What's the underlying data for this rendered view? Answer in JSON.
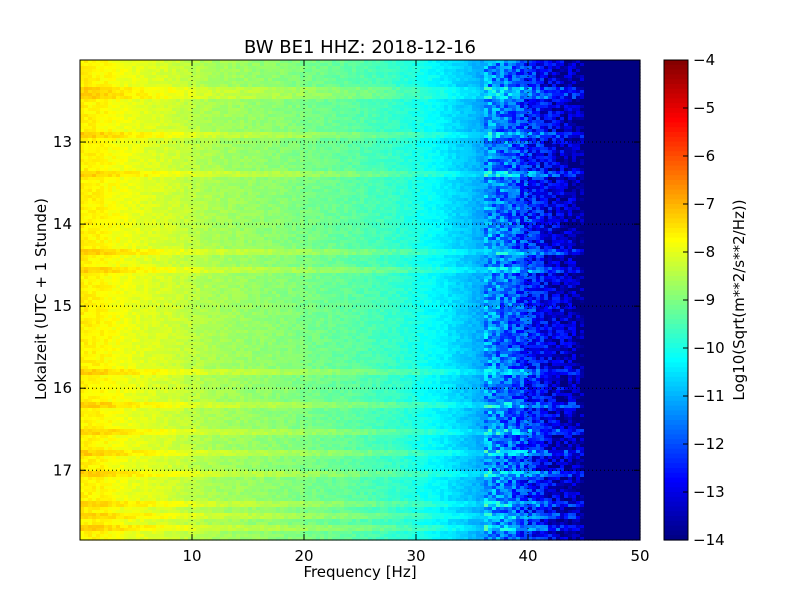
{
  "chart_data": {
    "type": "heatmap",
    "title": "BW BE1 HHZ: 2018-12-16",
    "xlabel": "Frequency [Hz]",
    "ylabel": "Lokalzeit (UTC + 1 Stunde)",
    "colorbar_label": "Log10(Sqrt(m**2/s**2/Hz))",
    "colormap": "jet",
    "xlim": [
      0,
      50
    ],
    "ylim": [
      12.0,
      17.85
    ],
    "y_inverted": true,
    "x_ticks": [
      10,
      20,
      30,
      40,
      50
    ],
    "x_tick_labels": [
      "10",
      "20",
      "30",
      "40",
      "50"
    ],
    "y_ticks": [
      13,
      14,
      15,
      16,
      17
    ],
    "y_tick_labels": [
      "13",
      "14",
      "15",
      "16",
      "17"
    ],
    "clim": [
      -14,
      -4
    ],
    "colorbar_ticks": [
      -4,
      -5,
      -6,
      -7,
      -8,
      -9,
      -10,
      -11,
      -12,
      -13,
      -14
    ],
    "colorbar_tick_labels": [
      "−4",
      "−5",
      "−6",
      "−7",
      "−8",
      "−9",
      "−10",
      "−11",
      "−12",
      "−13",
      "−14"
    ],
    "grid": true,
    "frequency_profile": {
      "frequency_hz": [
        0,
        2,
        5,
        8,
        12,
        18,
        24,
        28,
        32,
        35,
        38,
        40,
        42,
        44,
        45,
        50
      ],
      "log10_amplitude": [
        -7.6,
        -7.7,
        -8.0,
        -8.2,
        -8.6,
        -8.9,
        -9.3,
        -9.7,
        -10.3,
        -10.9,
        -11.7,
        -12.3,
        -13.1,
        -13.6,
        -14.0,
        -14.0
      ]
    },
    "louder_time_bands": [
      12.35,
      12.45,
      12.9,
      13.4,
      14.35,
      14.55,
      15.8,
      16.2,
      16.55,
      16.8,
      17.05,
      17.4,
      17.55,
      17.7
    ]
  }
}
